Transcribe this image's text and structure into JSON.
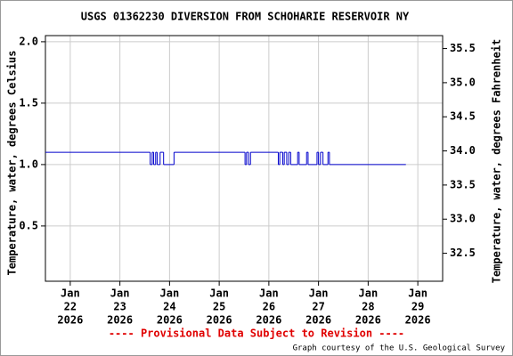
{
  "chart_data": {
    "type": "line",
    "title": "USGS 01362230 DIVERSION FROM SCHOHARIE RESERVOIR NY",
    "y_label": "Temperature, water, degrees Celsius",
    "y2_label": "Temperature, water, degrees Fahrenheit",
    "annotation": "---- Provisional Data Subject to Revision ----",
    "credit": "Graph courtesy of the U.S. Geological Survey",
    "step": true,
    "grid": true,
    "xlim": [
      21.5,
      29.5
    ],
    "xticks": [
      {
        "value": 22,
        "label": [
          "Jan",
          "22",
          "2026"
        ]
      },
      {
        "value": 23,
        "label": [
          "Jan",
          "23",
          "2026"
        ]
      },
      {
        "value": 24,
        "label": [
          "Jan",
          "24",
          "2026"
        ]
      },
      {
        "value": 25,
        "label": [
          "Jan",
          "25",
          "2026"
        ]
      },
      {
        "value": 26,
        "label": [
          "Jan",
          "26",
          "2026"
        ]
      },
      {
        "value": 27,
        "label": [
          "Jan",
          "27",
          "2026"
        ]
      },
      {
        "value": 28,
        "label": [
          "Jan",
          "28",
          "2026"
        ]
      },
      {
        "value": 29,
        "label": [
          "Jan",
          "29",
          "2026"
        ]
      }
    ],
    "ylim": [
      0.05,
      2.05
    ],
    "yticks": [
      0.5,
      {
        "value": 1,
        "label": "1.0"
      },
      1.5,
      {
        "value": 2,
        "label": "2.0"
      }
    ],
    "y2lim": [
      32.09,
      35.69
    ],
    "y2ticks": [
      32.5,
      {
        "value": 33,
        "label": "33.0"
      },
      33.5,
      {
        "value": 34,
        "label": "34.0"
      },
      34.5,
      {
        "value": 35,
        "label": "35.0"
      },
      35.5
    ],
    "series": [
      {
        "color": "#0000cc",
        "x": [
          21.5,
          23.61,
          23.65,
          23.68,
          23.72,
          23.75,
          23.81,
          23.88,
          24.09,
          25.52,
          25.55,
          25.59,
          25.63,
          26.19,
          26.22,
          26.28,
          26.31,
          26.36,
          26.4,
          26.44,
          26.58,
          26.61,
          26.76,
          26.79,
          26.97,
          27.0,
          27.04,
          27.09,
          27.19,
          27.22,
          27.24,
          28.76
        ],
        "values": [
          1.1,
          1.0,
          1.1,
          1.0,
          1.1,
          1.0,
          1.1,
          1.0,
          1.1,
          1.0,
          1.1,
          1.0,
          1.1,
          1.0,
          1.1,
          1.0,
          1.1,
          1.0,
          1.1,
          1.0,
          1.1,
          1.0,
          1.1,
          1.0,
          1.1,
          1.0,
          1.1,
          1.0,
          1.1,
          1.0,
          1.0,
          1.0
        ]
      }
    ]
  }
}
